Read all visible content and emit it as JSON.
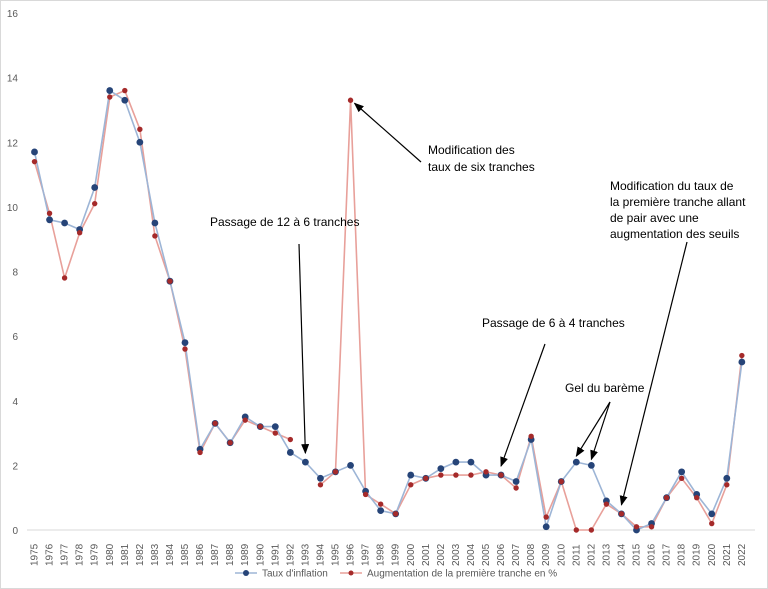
{
  "chart_data": {
    "type": "line",
    "title": "",
    "xlabel": "",
    "ylabel": "",
    "ylim": [
      0,
      16
    ],
    "yticks": [
      0,
      2,
      4,
      6,
      8,
      10,
      12,
      14,
      16
    ],
    "grid": false,
    "legend_position": "bottom",
    "categories": [
      "1975",
      "1976",
      "1977",
      "1978",
      "1979",
      "1980",
      "1981",
      "1982",
      "1983",
      "1984",
      "1985",
      "1986",
      "1987",
      "1988",
      "1989",
      "1990",
      "1991",
      "1992",
      "1993",
      "1994",
      "1995",
      "1996",
      "1997",
      "1998",
      "1999",
      "2000",
      "2001",
      "2002",
      "2003",
      "2004",
      "2005",
      "2006",
      "2007",
      "2008",
      "2009",
      "2010",
      "2011",
      "2012",
      "2013",
      "2014",
      "2015",
      "2016",
      "2017",
      "2018",
      "2019",
      "2020",
      "2021",
      "2022"
    ],
    "series": [
      {
        "name": "Taux d'inflation",
        "color": "#264478",
        "line_color": "#9DB5D6",
        "values": [
          11.7,
          9.6,
          9.5,
          9.3,
          10.6,
          13.6,
          13.3,
          12.0,
          9.5,
          7.7,
          5.8,
          2.5,
          3.3,
          2.7,
          3.5,
          3.2,
          3.2,
          2.4,
          2.1,
          1.6,
          1.8,
          2.0,
          1.2,
          0.6,
          0.5,
          1.7,
          1.6,
          1.9,
          2.1,
          2.1,
          1.7,
          1.7,
          1.5,
          2.8,
          0.1,
          1.5,
          2.1,
          2.0,
          0.9,
          0.5,
          0.0,
          0.2,
          1.0,
          1.8,
          1.1,
          0.5,
          1.6,
          5.2
        ]
      },
      {
        "name": "Augmentation de la première tranche en %",
        "color": "#A52A2A",
        "line_color": "#E8A09A",
        "values": [
          11.4,
          9.8,
          7.8,
          9.2,
          10.1,
          13.4,
          13.6,
          12.4,
          9.1,
          7.7,
          5.6,
          2.4,
          3.3,
          2.7,
          3.4,
          3.2,
          3.0,
          2.8,
          null,
          1.4,
          1.8,
          13.3,
          1.1,
          0.8,
          0.5,
          1.4,
          1.6,
          1.7,
          1.7,
          1.7,
          1.8,
          1.7,
          1.3,
          2.9,
          0.4,
          1.5,
          0.0,
          0.0,
          0.8,
          0.5,
          0.1,
          0.1,
          1.0,
          1.6,
          1.0,
          0.2,
          1.4,
          5.4
        ]
      }
    ],
    "annotations": [
      {
        "lines": [
          "Modification des",
          "taux de six tranches"
        ],
        "points_to": [
          {
            "year": "1996",
            "value": 13.3
          }
        ]
      },
      {
        "lines": [
          "Passage de 12 à 6 tranches"
        ],
        "points_to": [
          {
            "year": "1993",
            "value": 2.1
          }
        ]
      },
      {
        "lines": [
          "Modification du taux de",
          "la première tranche allant",
          "de pair avec une",
          "augmentation des seuils"
        ],
        "points_to": [
          {
            "year": "2014",
            "value": 0.5
          }
        ]
      },
      {
        "lines": [
          "Passage de 6 à 4 tranches"
        ],
        "points_to": [
          {
            "year": "2006",
            "value": 1.7
          }
        ]
      },
      {
        "lines": [
          "Gel du barème"
        ],
        "points_to": [
          {
            "year": "2011",
            "value": 2.1
          },
          {
            "year": "2012",
            "value": 2.0
          }
        ]
      }
    ]
  }
}
